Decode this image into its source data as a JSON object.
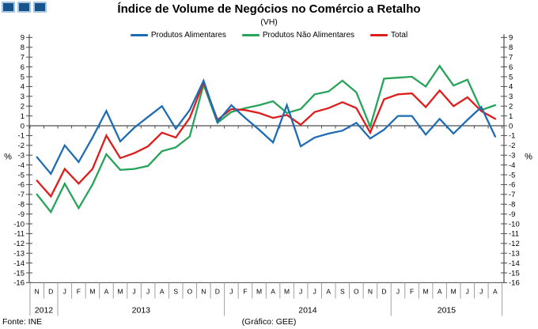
{
  "logo": {
    "square_count": 3
  },
  "header": {
    "title": "Índice de Volume de Negócios no Comércio a Retalho",
    "subtitle": "(VH)"
  },
  "footer": {
    "source": "Fonte: INE",
    "credit": "(Gráfico: GEE)"
  },
  "colors": {
    "blue": "#1e6cb5",
    "green": "#27a35a",
    "red": "#e01d1d",
    "axis": "#4d4d4d",
    "separator": "#a0a0a0",
    "text": "#000000",
    "logo_fill": "#17548c",
    "logo_border": "#a8c6de"
  },
  "chart_data": {
    "type": "line",
    "title": "Índice de Volume de Negócios no Comércio a Retalho",
    "subtitle": "(VH)",
    "ylabel_left": "%",
    "ylabel_right": "%",
    "ylim": [
      -16,
      9
    ],
    "ytick_step": 1,
    "grid": false,
    "legend_position": "top",
    "x_month_labels": [
      "N",
      "D",
      "J",
      "F",
      "M",
      "A",
      "M",
      "J",
      "J",
      "A",
      "S",
      "O",
      "N",
      "D",
      "J",
      "F",
      "M",
      "A",
      "M",
      "J",
      "J",
      "A",
      "S",
      "O",
      "N",
      "D",
      "J",
      "F",
      "M",
      "A",
      "M",
      "J",
      "J",
      "A"
    ],
    "year_groups": [
      {
        "label": "2012",
        "count": 2
      },
      {
        "label": "2013",
        "count": 12
      },
      {
        "label": "2014",
        "count": 12
      },
      {
        "label": "2015",
        "count": 8
      }
    ],
    "series": [
      {
        "name": "Produtos Alimentares",
        "color": "#1e6cb5",
        "values": [
          -3.2,
          -4.9,
          -2.0,
          -3.7,
          -1.2,
          1.5,
          -1.6,
          -0.2,
          0.9,
          2.0,
          -0.3,
          1.6,
          4.6,
          0.4,
          2.1,
          0.8,
          -0.4,
          -1.7,
          2.1,
          -2.1,
          -1.2,
          -0.8,
          -0.5,
          0.3,
          -1.3,
          -0.4,
          1.0,
          1.0,
          -0.9,
          0.7,
          -0.8,
          0.6,
          1.9,
          -1.1
        ]
      },
      {
        "name": "Produtos Não Alimentares",
        "color": "#27a35a",
        "values": [
          -7.0,
          -8.8,
          -5.9,
          -8.4,
          -6.0,
          -2.9,
          -4.5,
          -4.4,
          -4.1,
          -2.6,
          -2.2,
          -1.1,
          4.2,
          0.3,
          1.4,
          1.8,
          2.1,
          2.5,
          1.3,
          1.7,
          3.2,
          3.5,
          4.6,
          3.4,
          -0.1,
          4.8,
          4.9,
          5.0,
          4.0,
          6.1,
          4.1,
          4.7,
          1.6,
          2.1
        ]
      },
      {
        "name": "Total",
        "color": "#e01d1d",
        "values": [
          -5.6,
          -7.2,
          -4.4,
          -5.9,
          -4.4,
          -1.0,
          -3.3,
          -2.8,
          -2.1,
          -0.7,
          -1.2,
          0.8,
          4.4,
          0.6,
          1.7,
          1.6,
          1.3,
          0.8,
          1.1,
          0.1,
          1.4,
          1.8,
          2.4,
          1.8,
          -0.7,
          2.7,
          3.2,
          3.3,
          1.9,
          3.6,
          2.0,
          2.9,
          1.5,
          0.7
        ]
      }
    ],
    "draw_order": [
      1,
      2,
      0
    ]
  }
}
